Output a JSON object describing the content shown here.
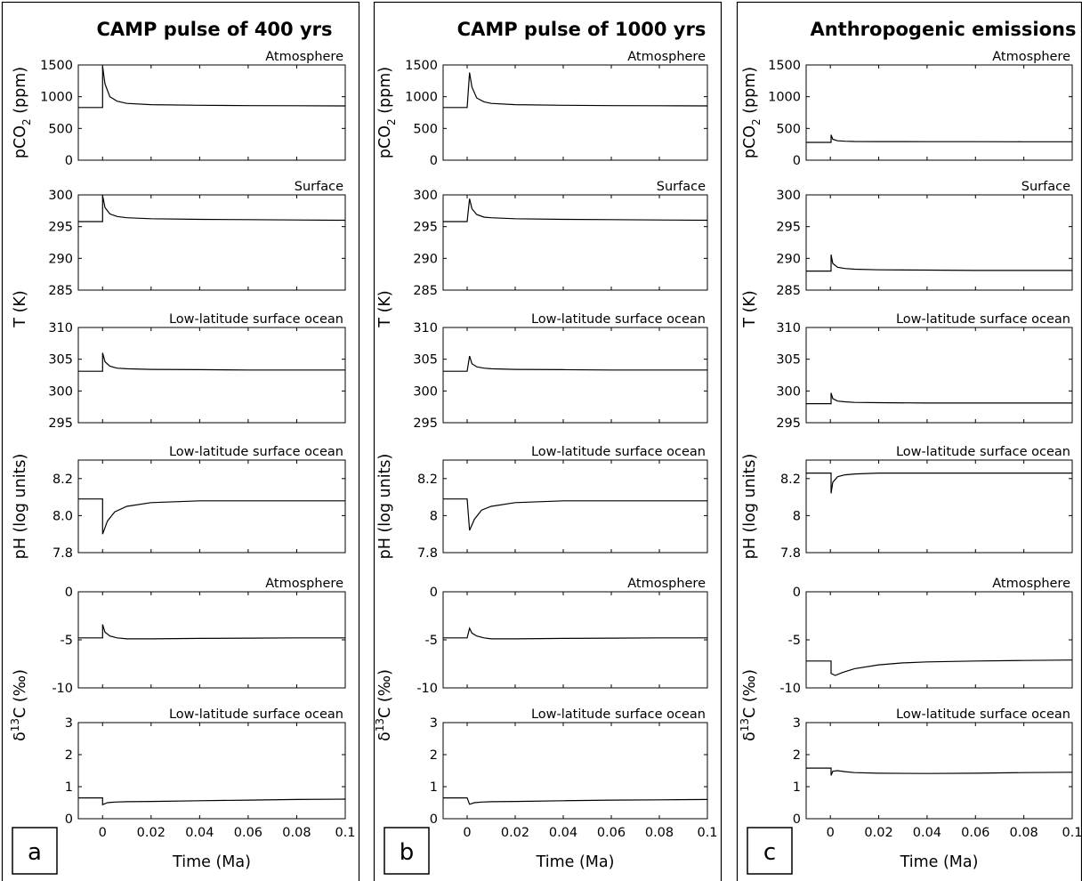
{
  "chart_data": [
    {
      "type": "line",
      "panel_label": "a",
      "title": "CAMP pulse of 400 yrs",
      "xlabel": "Time (Ma)",
      "xlim": [
        -0.01,
        0.1
      ],
      "xticks": [
        "0",
        "0.02",
        "0.04",
        "0.06",
        "0.08",
        "0.1"
      ],
      "grid": false,
      "subplots": [
        {
          "ylabel_main": "pCO",
          "ylabel_sub": "2",
          "ylabel_tail": " (ppm)",
          "annotation": "Atmosphere",
          "ylim": [
            0,
            1500
          ],
          "yticks": [
            "0",
            "500",
            "1000",
            "1500"
          ],
          "x": [
            -0.01,
            0,
            0,
            0.001,
            0.003,
            0.006,
            0.01,
            0.02,
            0.04,
            0.06,
            0.08,
            0.1
          ],
          "y": [
            830,
            830,
            1480,
            1200,
            1000,
            930,
            895,
            875,
            865,
            860,
            858,
            855
          ]
        },
        {
          "ylabel_main": "T (K)",
          "annotation": "Surface",
          "ylim": [
            285,
            300
          ],
          "yticks": [
            "285",
            "290",
            "295",
            "300"
          ],
          "x": [
            -0.01,
            0,
            0,
            0.001,
            0.003,
            0.006,
            0.01,
            0.02,
            0.04,
            0.06,
            0.08,
            0.1
          ],
          "y": [
            295.8,
            295.8,
            299.9,
            298.0,
            297.0,
            296.6,
            296.4,
            296.25,
            296.15,
            296.1,
            296.05,
            296.0
          ]
        },
        {
          "annotation": "Low-latitude surface ocean",
          "ylim": [
            295,
            310
          ],
          "yticks": [
            "295",
            "300",
            "305",
            "310"
          ],
          "x": [
            -0.01,
            0,
            0,
            0.001,
            0.003,
            0.006,
            0.01,
            0.02,
            0.04,
            0.06,
            0.08,
            0.1
          ],
          "y": [
            303.1,
            303.1,
            306.0,
            304.6,
            303.9,
            303.6,
            303.5,
            303.4,
            303.35,
            303.3,
            303.3,
            303.3
          ]
        },
        {
          "ylabel_main": "pH (log units)",
          "annotation": "Low-latitude surface ocean",
          "ylim": [
            7.8,
            8.3
          ],
          "yticks": [
            "7.8",
            "8.0",
            "8.2"
          ],
          "x": [
            -0.01,
            0,
            0,
            0.002,
            0.005,
            0.01,
            0.02,
            0.04,
            0.06,
            0.08,
            0.1
          ],
          "y": [
            8.09,
            8.09,
            7.9,
            7.97,
            8.02,
            8.05,
            8.07,
            8.08,
            8.08,
            8.08,
            8.08
          ]
        },
        {
          "ylabel_main": "δ",
          "ylabel_sup": "13",
          "ylabel_tail": "C (‰)",
          "annotation": "Atmosphere",
          "ylim": [
            -10,
            0
          ],
          "yticks": [
            "-10",
            "-5",
            "0"
          ],
          "x": [
            -0.01,
            0,
            0,
            0.001,
            0.003,
            0.006,
            0.01,
            0.02,
            0.04,
            0.06,
            0.08,
            0.1
          ],
          "y": [
            -4.8,
            -4.8,
            -3.4,
            -4.2,
            -4.6,
            -4.8,
            -4.9,
            -4.9,
            -4.85,
            -4.82,
            -4.8,
            -4.8
          ]
        },
        {
          "annotation": "Low-latitude surface ocean",
          "ylim": [
            0,
            3
          ],
          "yticks": [
            "0",
            "1",
            "2",
            "3"
          ],
          "x": [
            -0.01,
            0,
            0,
            0.002,
            0.005,
            0.01,
            0.02,
            0.04,
            0.06,
            0.08,
            0.1
          ],
          "y": [
            0.65,
            0.65,
            0.44,
            0.5,
            0.52,
            0.53,
            0.54,
            0.56,
            0.58,
            0.6,
            0.61
          ]
        }
      ]
    },
    {
      "type": "line",
      "panel_label": "b",
      "title": "CAMP pulse of 1000 yrs",
      "xlabel": "Time (Ma)",
      "xlim": [
        -0.01,
        0.1
      ],
      "xticks": [
        "0",
        "0.02",
        "0.04",
        "0.06",
        "0.08",
        "0.1"
      ],
      "grid": false,
      "subplots": [
        {
          "annotation": "Atmosphere",
          "ylim": [
            0,
            1500
          ],
          "yticks": [
            "0",
            "500",
            "1000",
            "1500"
          ],
          "x": [
            -0.01,
            0,
            0.001,
            0.002,
            0.004,
            0.007,
            0.01,
            0.02,
            0.04,
            0.06,
            0.08,
            0.1
          ],
          "y": [
            830,
            830,
            1380,
            1150,
            980,
            920,
            895,
            875,
            865,
            860,
            858,
            855
          ]
        },
        {
          "annotation": "Surface",
          "ylim": [
            285,
            300
          ],
          "yticks": [
            "285",
            "290",
            "295",
            "300"
          ],
          "x": [
            -0.01,
            0,
            0.001,
            0.002,
            0.004,
            0.007,
            0.01,
            0.02,
            0.04,
            0.06,
            0.08,
            0.1
          ],
          "y": [
            295.8,
            295.8,
            299.4,
            297.8,
            296.9,
            296.5,
            296.4,
            296.25,
            296.15,
            296.1,
            296.05,
            296.0
          ]
        },
        {
          "annotation": "Low-latitude surface ocean",
          "ylim": [
            295,
            310
          ],
          "yticks": [
            "295",
            "300",
            "305",
            "310"
          ],
          "x": [
            -0.01,
            0,
            0.001,
            0.002,
            0.004,
            0.007,
            0.01,
            0.02,
            0.04,
            0.06,
            0.08,
            0.1
          ],
          "y": [
            303.1,
            303.1,
            305.5,
            304.3,
            303.8,
            303.6,
            303.5,
            303.4,
            303.35,
            303.3,
            303.3,
            303.3
          ]
        },
        {
          "annotation": "Low-latitude surface ocean",
          "ylim": [
            7.8,
            8.3
          ],
          "yticks": [
            "7.8",
            "8",
            "8.2"
          ],
          "x": [
            -0.01,
            0,
            0.001,
            0.003,
            0.006,
            0.01,
            0.02,
            0.04,
            0.06,
            0.08,
            0.1
          ],
          "y": [
            8.09,
            8.09,
            7.92,
            7.98,
            8.03,
            8.05,
            8.07,
            8.08,
            8.08,
            8.08,
            8.08
          ]
        },
        {
          "annotation": "Atmosphere",
          "ylim": [
            -10,
            0
          ],
          "yticks": [
            "-10",
            "-5",
            "0"
          ],
          "x": [
            -0.01,
            0,
            0.001,
            0.002,
            0.004,
            0.007,
            0.01,
            0.02,
            0.04,
            0.06,
            0.08,
            0.1
          ],
          "y": [
            -4.8,
            -4.8,
            -3.8,
            -4.3,
            -4.6,
            -4.8,
            -4.9,
            -4.9,
            -4.85,
            -4.82,
            -4.8,
            -4.8
          ]
        },
        {
          "annotation": "Low-latitude surface ocean",
          "ylim": [
            0,
            3
          ],
          "yticks": [
            "0",
            "1",
            "2",
            "3"
          ],
          "x": [
            -0.01,
            0,
            0.001,
            0.003,
            0.006,
            0.01,
            0.02,
            0.04,
            0.06,
            0.08,
            0.1
          ],
          "y": [
            0.65,
            0.65,
            0.45,
            0.5,
            0.52,
            0.53,
            0.54,
            0.56,
            0.58,
            0.59,
            0.6
          ]
        }
      ]
    },
    {
      "type": "line",
      "panel_label": "c",
      "title": "Anthropogenic emissions",
      "xlabel": "Time (Ma)",
      "xlim": [
        -0.01,
        0.1
      ],
      "xticks": [
        "0",
        "0.02",
        "0.04",
        "0.06",
        "0.08",
        "0.1"
      ],
      "grid": false,
      "subplots": [
        {
          "annotation": "Atmosphere",
          "ylim": [
            0,
            1500
          ],
          "yticks": [
            "0",
            "500",
            "1000",
            "1500"
          ],
          "x": [
            -0.01,
            0.0003,
            0.0003,
            0.001,
            0.003,
            0.006,
            0.01,
            0.02,
            0.04,
            0.06,
            0.08,
            0.1
          ],
          "y": [
            280,
            280,
            400,
            330,
            305,
            298,
            295,
            293,
            292,
            291,
            290,
            290
          ]
        },
        {
          "annotation": "Surface",
          "ylim": [
            285,
            300
          ],
          "yticks": [
            "285",
            "290",
            "295",
            "300"
          ],
          "x": [
            -0.01,
            0.0003,
            0.0003,
            0.001,
            0.003,
            0.006,
            0.01,
            0.02,
            0.04,
            0.06,
            0.08,
            0.1
          ],
          "y": [
            288.0,
            288.0,
            290.6,
            289.2,
            288.6,
            288.4,
            288.3,
            288.2,
            288.15,
            288.1,
            288.1,
            288.1
          ]
        },
        {
          "annotation": "Low-latitude surface ocean",
          "ylim": [
            295,
            310
          ],
          "yticks": [
            "295",
            "300",
            "305",
            "310"
          ],
          "x": [
            -0.01,
            0.0003,
            0.0003,
            0.001,
            0.003,
            0.006,
            0.01,
            0.02,
            0.04,
            0.06,
            0.08,
            0.1
          ],
          "y": [
            298.0,
            298.0,
            299.7,
            298.8,
            298.4,
            298.3,
            298.2,
            298.15,
            298.1,
            298.1,
            298.1,
            298.1
          ]
        },
        {
          "annotation": "Low-latitude surface ocean",
          "ylim": [
            7.8,
            8.3
          ],
          "yticks": [
            "7.8",
            "8",
            "8.2"
          ],
          "x": [
            -0.01,
            0.0003,
            0.0003,
            0.001,
            0.003,
            0.006,
            0.01,
            0.02,
            0.04,
            0.06,
            0.08,
            0.1
          ],
          "y": [
            8.23,
            8.23,
            8.12,
            8.18,
            8.21,
            8.22,
            8.225,
            8.23,
            8.23,
            8.23,
            8.23,
            8.23
          ]
        },
        {
          "annotation": "Atmosphere",
          "ylim": [
            -10,
            0
          ],
          "yticks": [
            "-10",
            "-5",
            "0"
          ],
          "x": [
            -0.01,
            0.0003,
            0.0003,
            0.002,
            0.005,
            0.01,
            0.02,
            0.03,
            0.04,
            0.06,
            0.08,
            0.1
          ],
          "y": [
            -7.2,
            -7.2,
            -8.5,
            -8.7,
            -8.4,
            -8.0,
            -7.6,
            -7.4,
            -7.3,
            -7.2,
            -7.15,
            -7.1
          ]
        },
        {
          "annotation": "Low-latitude surface ocean",
          "ylim": [
            0,
            3
          ],
          "yticks": [
            "0",
            "1",
            "2",
            "3"
          ],
          "x": [
            -0.01,
            0.0003,
            0.0003,
            0.001,
            0.003,
            0.006,
            0.01,
            0.02,
            0.04,
            0.06,
            0.08,
            0.1
          ],
          "y": [
            1.58,
            1.58,
            1.35,
            1.48,
            1.5,
            1.47,
            1.44,
            1.42,
            1.41,
            1.42,
            1.44,
            1.45
          ]
        }
      ]
    }
  ]
}
